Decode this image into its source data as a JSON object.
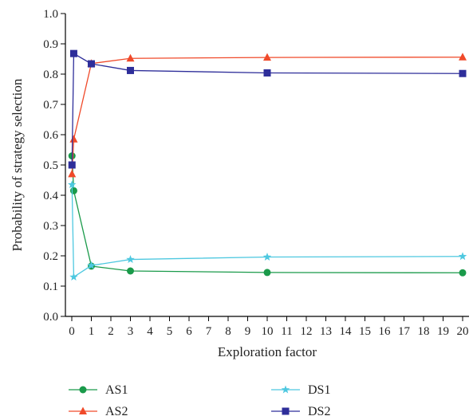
{
  "chart_data": {
    "type": "line",
    "title": "",
    "xlabel": "Exploration factor",
    "ylabel": "Probability of strategy selection",
    "xlim": [
      0,
      20
    ],
    "ylim": [
      0.0,
      1.0
    ],
    "x_ticks": [
      0,
      1,
      2,
      3,
      4,
      5,
      6,
      7,
      8,
      9,
      10,
      11,
      12,
      13,
      14,
      15,
      16,
      17,
      18,
      19,
      20
    ],
    "y_ticks": [
      0.0,
      0.1,
      0.2,
      0.3,
      0.4,
      0.5,
      0.6,
      0.7,
      0.8,
      0.9,
      1.0
    ],
    "x_tick_labels": [
      "0",
      "1",
      "2",
      "3",
      "4",
      "5",
      "6",
      "7",
      "8",
      "9",
      "10",
      "11",
      "12",
      "13",
      "14",
      "15",
      "16",
      "17",
      "18",
      "19",
      "20"
    ],
    "y_tick_labels": [
      "0.0",
      "0.1",
      "0.2",
      "0.3",
      "0.4",
      "0.5",
      "0.6",
      "0.7",
      "0.8",
      "0.9",
      "1.0"
    ],
    "grid": false,
    "legend_position": "bottom",
    "series": [
      {
        "name": "AS1",
        "color": "#1a9a4a",
        "marker": "circle",
        "x": [
          0.01,
          0.1,
          1,
          3,
          10,
          20
        ],
        "y": [
          0.53,
          0.415,
          0.166,
          0.15,
          0.145,
          0.144
        ]
      },
      {
        "name": "AS2",
        "color": "#f04a2a",
        "marker": "triangle",
        "x": [
          0.01,
          0.1,
          1,
          3,
          10,
          20
        ],
        "y": [
          0.47,
          0.585,
          0.835,
          0.852,
          0.855,
          0.856
        ]
      },
      {
        "name": "DS1",
        "color": "#4ec8e0",
        "marker": "star",
        "x": [
          0.01,
          0.1,
          1,
          3,
          10,
          20
        ],
        "y": [
          0.435,
          0.13,
          0.168,
          0.188,
          0.196,
          0.198
        ]
      },
      {
        "name": "DS2",
        "color": "#2e2e9a",
        "marker": "square",
        "x": [
          0.01,
          0.1,
          1,
          3,
          10,
          20
        ],
        "y": [
          0.5,
          0.868,
          0.834,
          0.812,
          0.804,
          0.802
        ]
      }
    ]
  }
}
